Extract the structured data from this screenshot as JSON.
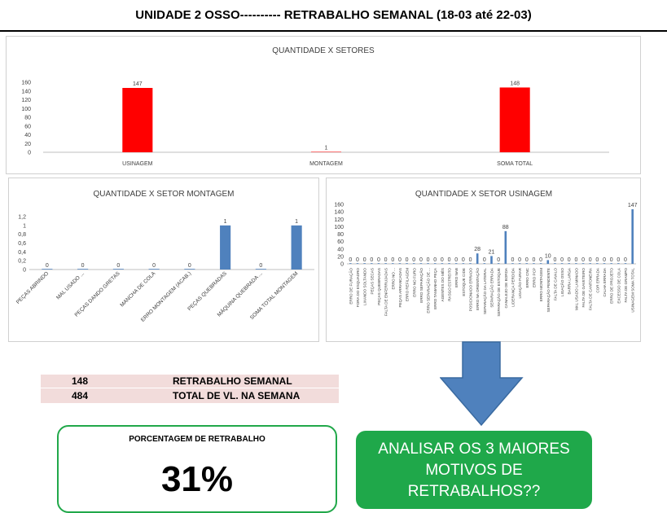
{
  "header": {
    "title": "UNIDADE 2 OSSO----------   RETRABALHO SEMANAL (18-03 até 22-03)"
  },
  "chart_data": [
    {
      "type": "bar",
      "title": "QUANTIDADE X SETORES",
      "categories": [
        "USINAGEM",
        "MONTAGEM",
        "SOMA TOTAL"
      ],
      "values": [
        147,
        1,
        148
      ],
      "data_labels": [
        "147",
        "1",
        "148"
      ],
      "ylim": [
        0,
        160
      ],
      "yticks": [
        0,
        20,
        40,
        60,
        80,
        100,
        120,
        140,
        160
      ],
      "color": "#ff0000",
      "grid": false
    },
    {
      "type": "bar",
      "title": "QUANTIDADE X SETOR MONTAGEM",
      "categories": [
        "PEÇAS ABRINDO",
        "MAL USADO ...",
        "PEÇAS DANDO GRETAS",
        "MANCHA DE COLA",
        "ERRO MONTAGEM (ACAB.)",
        "PEÇAS QUEBRADAS",
        "MÁQUINA QUEBRADA ...",
        "SOMA TOTAL MONTAGEM"
      ],
      "values": [
        0,
        0,
        0,
        0,
        0,
        1,
        0,
        1
      ],
      "data_labels": [
        "0",
        "0",
        "0",
        "0",
        "0",
        "1",
        "0",
        "1"
      ],
      "ylim": [
        0,
        1.2
      ],
      "yticks": [
        "0",
        "0,2",
        "0,4",
        "0,6",
        "0,8",
        "1",
        "1,2"
      ],
      "color": "#4f81bd",
      "grid": false
    },
    {
      "type": "bar",
      "title": "QUANTIDADE X SETOR USINAGEM",
      "categories": [
        "ERRO DE FURAÇÃO",
        "FORA DO ESQUADRO",
        "LIXANDO SOLTANDO",
        "PEÇAS SECAS",
        "PEÇAS QUEBRADAS",
        "FALTA DE ENFERRUJADAS",
        "ERRO NO ...",
        "PEÇAS ARRANCADAS",
        "ERRO REFILAGEM",
        "ERRO NO FURO",
        "ERRO SEPARAÇÃO",
        "ERRO SEPARAÇÃO DE ...",
        "ERRO TAMANHO PEÇA",
        "AGENTES DO MÊS",
        "RASGO ESTREITO",
        "ERRO NAB",
        "ESTOQUE CIDE",
        "POSICIONADO ERRADO",
        "ERRO NA ORIENTAÇÃO",
        "SEPARAÇÃO DA LATERAL",
        "SEPARAÇÃO ERRADA",
        "SEPARAÇÃO DE ESTOQUE",
        "CANALEJO DE BORDA",
        "LIDERANÇA PERDIDA",
        "LIGAÇÃO FURAR",
        "ERRO CNC",
        "ERRO PCP",
        "ERRO MONTAGEM",
        "SEPARAÇÃO PENDENTE",
        "FALTA DE CAVALO",
        "LIGAÇÃO OSSO",
        "BARRA LARGA",
        "MAL USADO LAMINADO",
        "FALTA DE GAVETEIRO",
        "FALTA DE CANTONEIRA",
        "COR ERRADA",
        "CALHA ERRADA",
        "ERRO DE PROJETO",
        "EXCESSO DE COLA",
        "FALTA DE GRAMPO",
        "USINAGEM SOMA TOTAL"
      ],
      "values": [
        0,
        0,
        0,
        0,
        0,
        0,
        0,
        0,
        0,
        0,
        0,
        0,
        0,
        0,
        0,
        0,
        0,
        0,
        28,
        0,
        21,
        0,
        88,
        0,
        0,
        0,
        0,
        0,
        10,
        0,
        0,
        0,
        0,
        0,
        0,
        0,
        0,
        0,
        0,
        0,
        147
      ],
      "data_labels": [
        "0",
        "0",
        "0",
        "0",
        "0",
        "0",
        "0",
        "0",
        "0",
        "0",
        "0",
        "0",
        "0",
        "0",
        "0",
        "0",
        "0",
        "0",
        "28",
        "0",
        "21",
        "0",
        "88",
        "0",
        "0",
        "0",
        "0",
        "0",
        "10",
        "0",
        "0",
        "0",
        "0",
        "0",
        "0",
        "0",
        "0",
        "0",
        "0",
        "0",
        "147"
      ],
      "ylim": [
        0,
        160
      ],
      "yticks": [
        0,
        20,
        40,
        60,
        80,
        100,
        120,
        140,
        160
      ],
      "color": "#4f81bd",
      "grid": false
    }
  ],
  "summary": {
    "rows": [
      {
        "value": "148",
        "label": "RETRABALHO SEMANAL"
      },
      {
        "value": "484",
        "label": "TOTAL DE VL. NA SEMANA"
      }
    ]
  },
  "percentage": {
    "label": "PORCENTAGEM DE RETRABALHO",
    "value": "31%"
  },
  "callout": {
    "lines": [
      "ANALISAR OS 3 MAIORES",
      "MOTIVOS DE",
      "RETRABALHOS??"
    ]
  },
  "colors": {
    "callout_bg": "#1fa84a",
    "arrow": "#4f81bd",
    "table_bg": "#f2dcdb",
    "box_border": "#21a84a"
  }
}
